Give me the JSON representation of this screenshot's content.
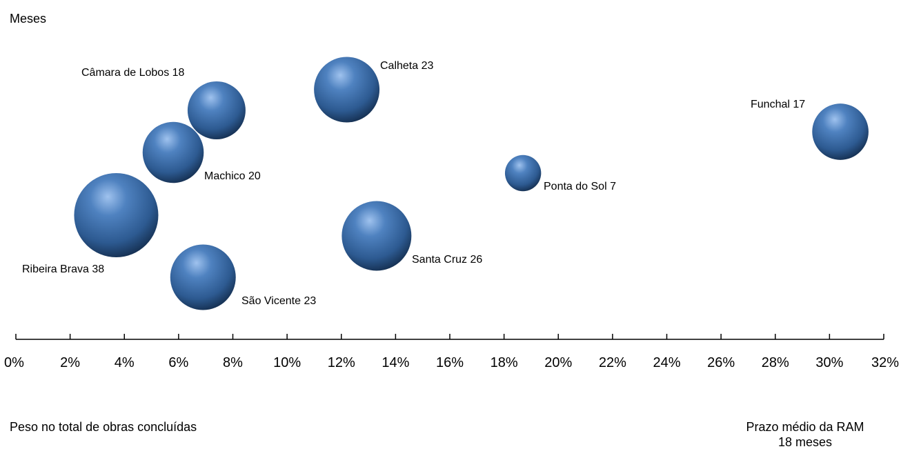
{
  "chart_data": {
    "type": "scatter",
    "variant": "bubble",
    "ylabel": "Meses",
    "xlabel": "Peso no total de obras concluídas",
    "reference_note": [
      "Prazo médio da RAM",
      "18 meses"
    ],
    "xlim": [
      0,
      32
    ],
    "x_ticks": [
      "0%",
      "2%",
      "4%",
      "6%",
      "8%",
      "10%",
      "12%",
      "14%",
      "16%",
      "18%",
      "20%",
      "22%",
      "24%",
      "26%",
      "28%",
      "30%",
      "32%"
    ],
    "x_tick_values": [
      0,
      2,
      4,
      6,
      8,
      10,
      12,
      14,
      16,
      18,
      20,
      22,
      24,
      26,
      28,
      30,
      32
    ],
    "grid": false,
    "bubble_color": "#3a6aa5",
    "points": [
      {
        "name": "Câmara de Lobos",
        "label": "Câmara de Lobos  18",
        "x": 7.4,
        "y": 18,
        "size": 18
      },
      {
        "name": "Calheta",
        "label": "Calheta  23",
        "x": 12.2,
        "y": 23,
        "size": 23
      },
      {
        "name": "Funchal",
        "label": "Funchal  17",
        "x": 30.4,
        "y": 17,
        "size": 17
      },
      {
        "name": "Machico",
        "label": "Machico  20",
        "x": 5.8,
        "y": 20,
        "size": 20
      },
      {
        "name": "Ponta do Sol",
        "label": "Ponta do Sol  7",
        "x": 18.7,
        "y": 7,
        "size": 7
      },
      {
        "name": "Ribeira Brava",
        "label": "Ribeira Brava  38",
        "x": 3.7,
        "y": 38,
        "size": 38
      },
      {
        "name": "Santa Cruz",
        "label": "Santa Cruz  26",
        "x": 13.3,
        "y": 26,
        "size": 26
      },
      {
        "name": "São Vicente",
        "label": "São Vicente  23",
        "x": 6.9,
        "y": 23,
        "size": 23
      }
    ]
  }
}
